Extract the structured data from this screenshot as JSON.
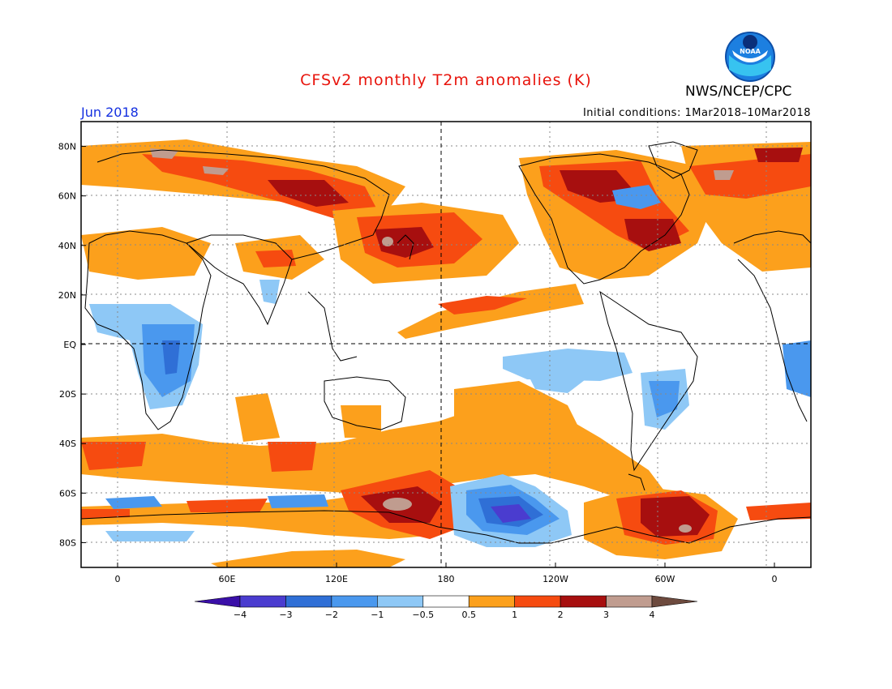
{
  "title": "CFSv2 monthly T2m anomalies (K)",
  "agency": "NWS/NCEP/CPC",
  "logo_text": "NOAA",
  "period": "Jun 2018",
  "initial_conditions": "Initial conditions: 1Mar2018–10Mar2018",
  "map": {
    "lat_labels": [
      "80N",
      "60N",
      "40N",
      "20N",
      "EQ",
      "20S",
      "40S",
      "60S",
      "80S"
    ],
    "lat_values": [
      80,
      60,
      40,
      20,
      0,
      -20,
      -40,
      -60,
      -80
    ],
    "lon_labels": [
      "0",
      "60E",
      "120E",
      "180",
      "120W",
      "60W",
      "0"
    ],
    "lon_values": [
      0,
      60,
      120,
      180,
      240,
      300,
      360
    ],
    "lon_range": [
      -20,
      380
    ],
    "lat_range": [
      -90,
      90
    ]
  },
  "colorbar": {
    "labels": [
      "−4",
      "−3",
      "−2",
      "−1",
      "−0.5",
      "0.5",
      "1",
      "2",
      "3",
      "4"
    ],
    "colors": [
      "#3a0fa8",
      "#4a3ccf",
      "#2f6fd6",
      "#4a98ee",
      "#8ec8f6",
      "#ffffff",
      "#fca01c",
      "#f64b10",
      "#a70f0f",
      "#c09c8f",
      "#6d4a3e"
    ]
  },
  "palette": {
    "light_blue": "#8ec8f6",
    "blue": "#4a98ee",
    "mid_blue": "#2f6fd6",
    "deep_blue": "#4a3ccf",
    "orange": "#fca01c",
    "red_orange": "#f64b10",
    "dark_red": "#a70f0f",
    "tan": "#c09c8f",
    "title_red": "#e8140c",
    "period_blue": "#1430e0"
  }
}
